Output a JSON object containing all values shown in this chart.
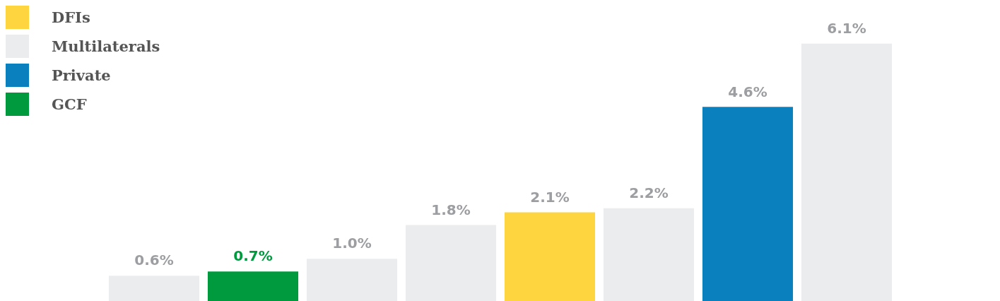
{
  "chart_data": {
    "type": "bar",
    "categories": [
      null,
      null,
      null,
      null,
      null,
      null,
      null,
      null
    ],
    "stacked": true,
    "legend": "top left",
    "tick_labels": false,
    "series": [
      {
        "name": "DFIs",
        "color": "#fed53f",
        "values": [
          null,
          null,
          null,
          null,
          2.1,
          null,
          null,
          null
        ],
        "value_labels": [
          null,
          null,
          null,
          null,
          "2.1%",
          null,
          null,
          null
        ]
      },
      {
        "name": "Multilaterals",
        "color": "#ebecee",
        "values": [
          0.6,
          null,
          1.0,
          1.8,
          null,
          2.2,
          null,
          6.1
        ],
        "value_labels": [
          "0.6%",
          null,
          "1.0%",
          "1.8%",
          null,
          "2.2%",
          null,
          "6.1%"
        ]
      },
      {
        "name": "Private",
        "color": "#0b80bf",
        "values": [
          null,
          null,
          null,
          null,
          null,
          null,
          4.6,
          null
        ],
        "value_labels": [
          null,
          null,
          null,
          null,
          null,
          null,
          "4.6%",
          null
        ]
      },
      {
        "name": "GCF",
        "color": "#009a3e",
        "values": [
          null,
          0.7,
          null,
          null,
          null,
          null,
          null,
          null
        ],
        "value_labels": [
          null,
          "0.7%",
          null,
          null,
          null,
          null,
          null,
          null
        ]
      }
    ]
  }
}
